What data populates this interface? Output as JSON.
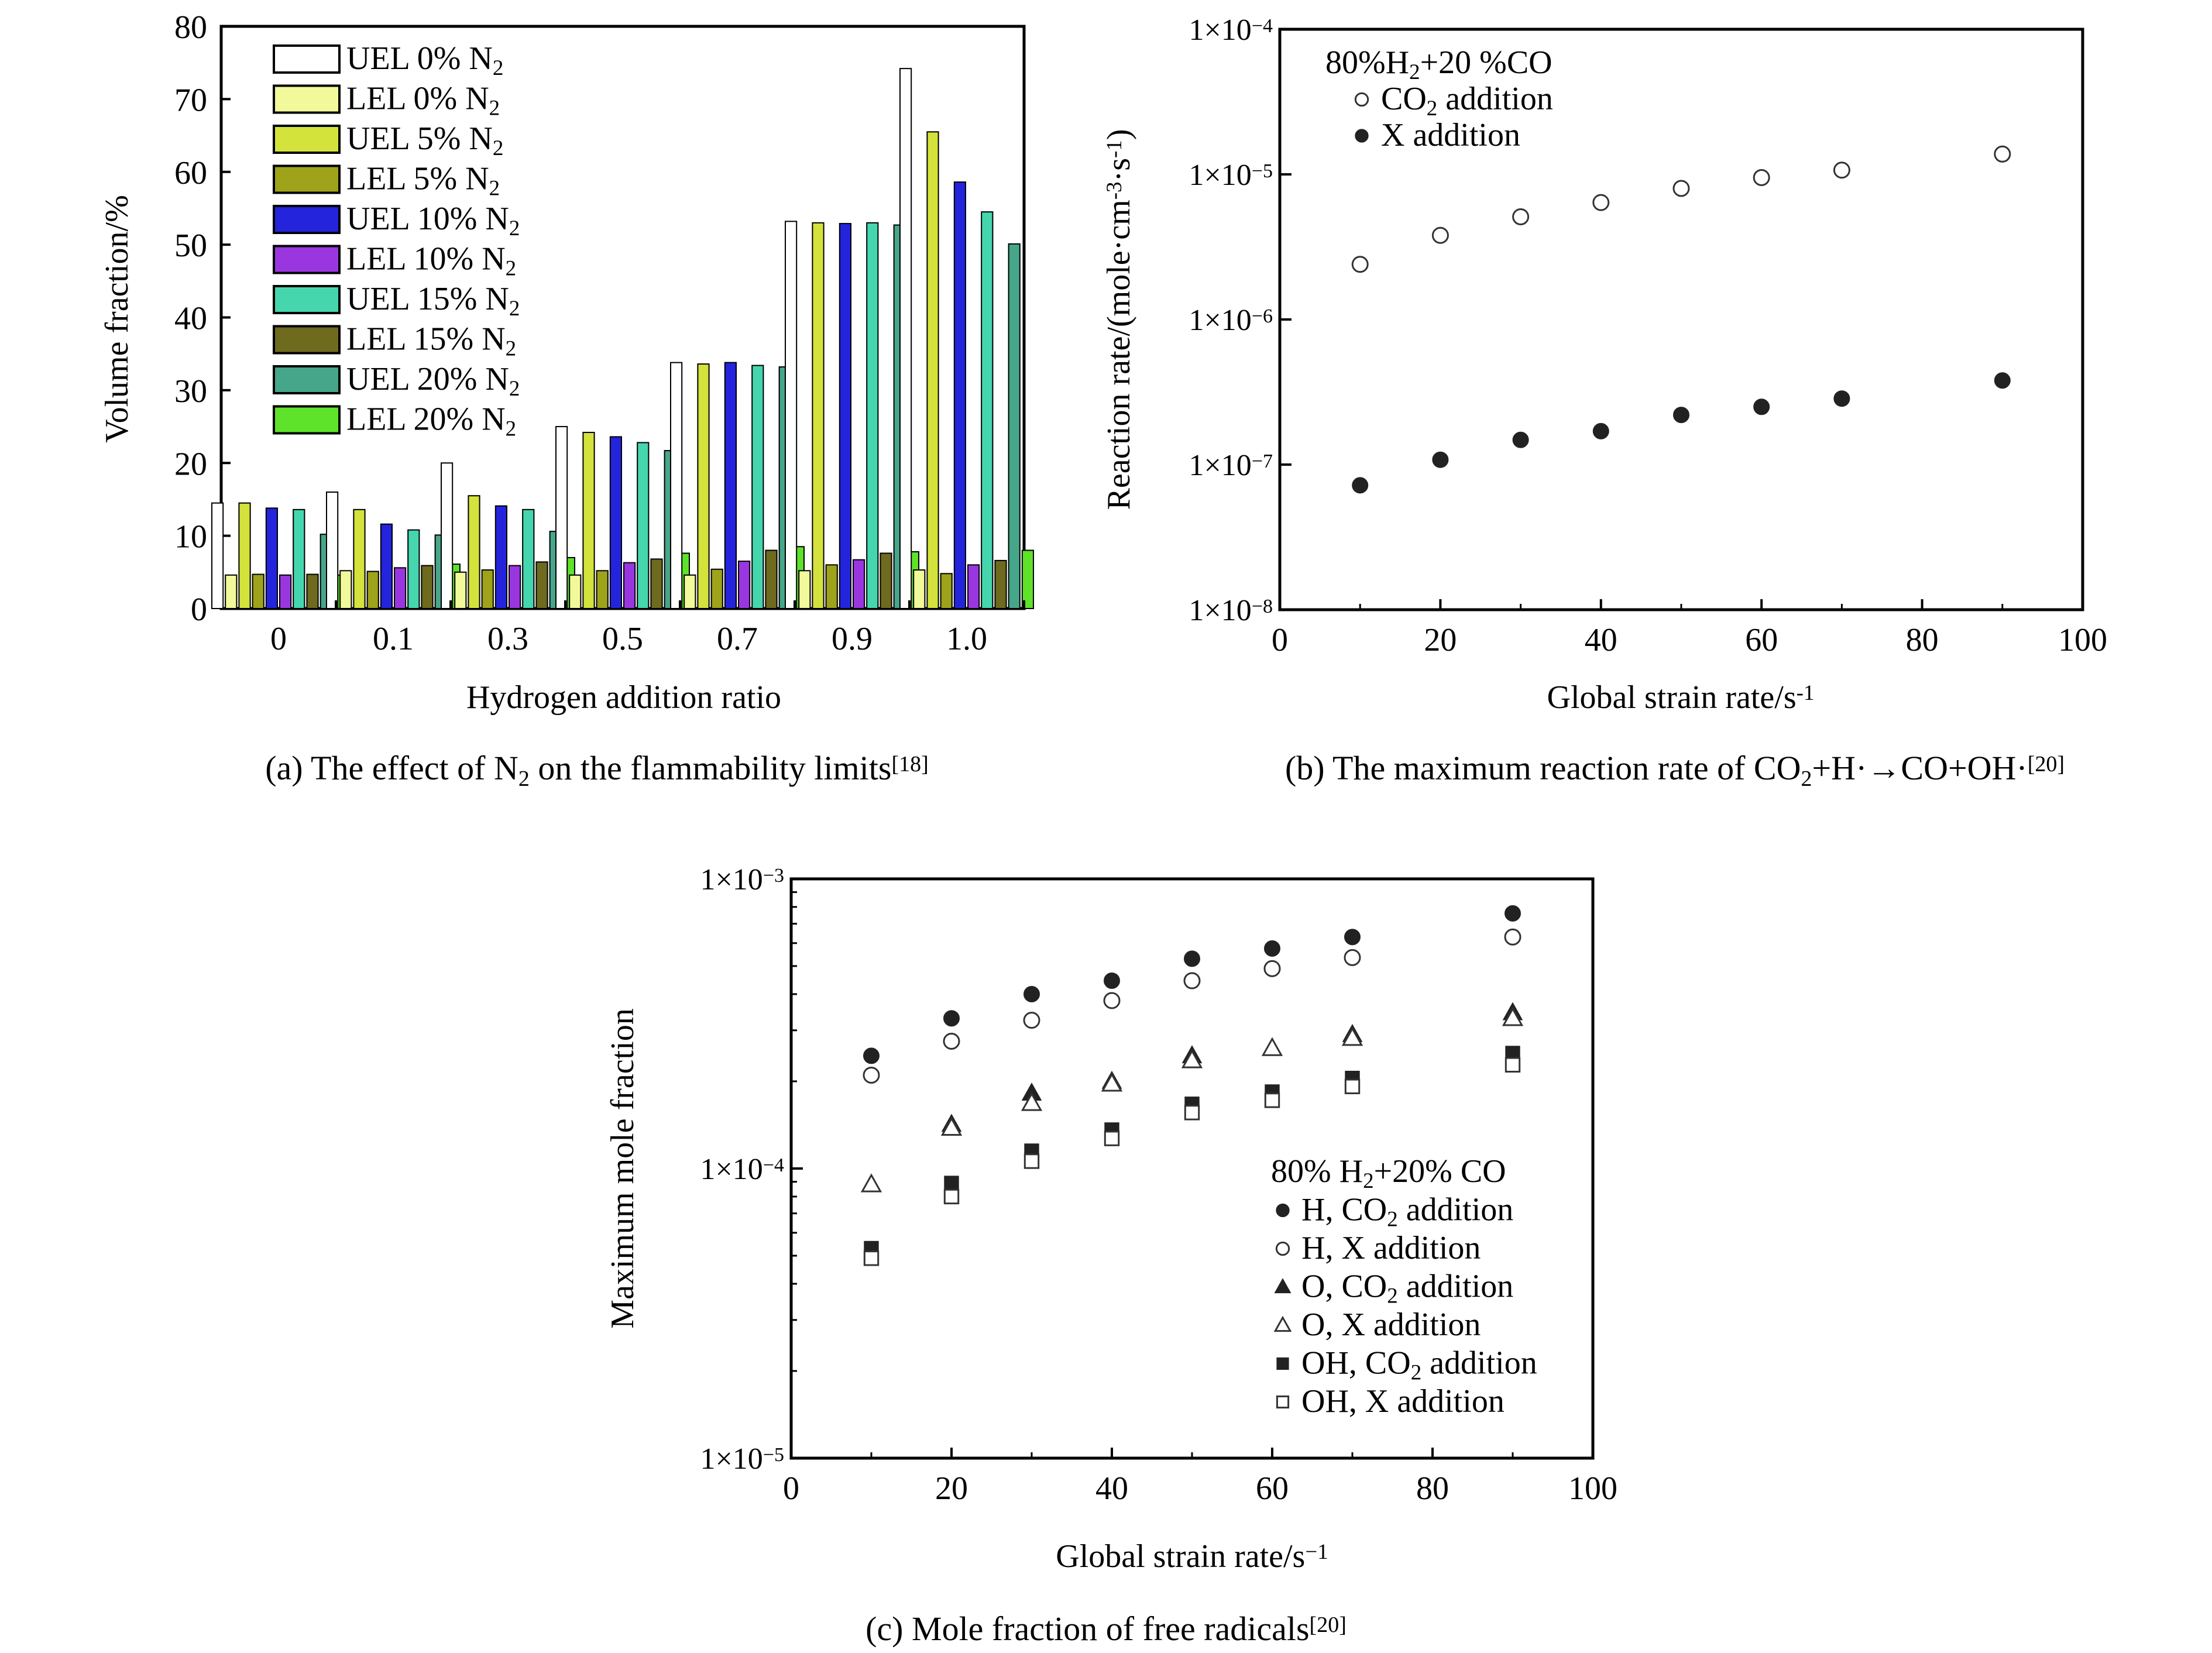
{
  "chart_data": [
    {
      "type": "bar",
      "caption": {
        "main": "(a) The effect of N",
        "sub": "2",
        "tail": " on the flammability limits",
        "ref": "[18]"
      },
      "xlabel": "Hydrogen addition ratio",
      "ylabel": "Volume fraction/%",
      "ylim": [
        0,
        80
      ],
      "yticks": [
        "0",
        "10",
        "20",
        "30",
        "40",
        "50",
        "60",
        "70",
        "80"
      ],
      "categories": [
        "0",
        "0.1",
        "0.3",
        "0.5",
        "0.7",
        "0.9",
        "1.0"
      ],
      "legend_position": "top-left",
      "series": [
        {
          "name": "UEL 0% N",
          "sub": "2",
          "color": "#ffffff",
          "values": [
            14.5,
            16,
            20,
            25,
            33.8,
            53.2,
            74.2
          ]
        },
        {
          "name": "LEL 0% N",
          "sub": "2",
          "color": "#f2f99a",
          "values": [
            4.6,
            5.2,
            5.0,
            4.6,
            4.6,
            5.2,
            5.3
          ]
        },
        {
          "name": "UEL 5% N",
          "sub": "2",
          "color": "#d4e23c",
          "values": [
            14.5,
            13.6,
            15.5,
            24.2,
            33.6,
            53.0,
            65.5
          ]
        },
        {
          "name": "LEL 5% N",
          "sub": "2",
          "color": "#9ea31a",
          "values": [
            4.7,
            5.1,
            5.3,
            5.2,
            5.4,
            6.0,
            4.8
          ]
        },
        {
          "name": "UEL 10% N",
          "sub": "2",
          "color": "#2424dc",
          "values": [
            13.8,
            11.6,
            14.1,
            23.6,
            33.8,
            52.9,
            58.6
          ]
        },
        {
          "name": "LEL 10% N",
          "sub": "2",
          "color": "#9a36e0",
          "values": [
            4.6,
            5.6,
            5.9,
            6.3,
            6.5,
            6.7,
            6.0
          ]
        },
        {
          "name": "UEL 15% N",
          "sub": "2",
          "color": "#46d6ae",
          "values": [
            13.6,
            10.8,
            13.6,
            22.8,
            33.4,
            53.0,
            54.5
          ]
        },
        {
          "name": "LEL 15% N",
          "sub": "2",
          "color": "#6e6a1e",
          "values": [
            4.7,
            5.9,
            6.4,
            6.8,
            8.0,
            7.6,
            6.6
          ]
        },
        {
          "name": "UEL 20% N",
          "sub": "2",
          "color": "#46a68a",
          "values": [
            10.2,
            10.1,
            10.6,
            21.7,
            33.2,
            52.7,
            50.1
          ]
        },
        {
          "name": "LEL 20% N",
          "sub": "2",
          "color": "#5ee22a",
          "values": [
            4.6,
            6.1,
            7.0,
            7.6,
            8.5,
            7.8,
            8.0
          ]
        }
      ]
    },
    {
      "type": "scatter",
      "caption": {
        "main": "(b) The maximum reaction rate of CO",
        "sub": "2",
        "tail": "+H·→CO+OH·",
        "ref": "[20]"
      },
      "xlabel": "Global strain rate/s",
      "xlabel_sup": "-1",
      "ylabel": "Reaction rate/(mole·cm",
      "ylabel_sup1": "-3",
      "ylabel_mid": "·s",
      "ylabel_sup2": "-1",
      "ylabel_end": ")",
      "xlim": [
        0,
        100
      ],
      "xticks": [
        "0",
        "20",
        "40",
        "60",
        "80",
        "100"
      ],
      "ylog": true,
      "ylim": [
        1e-08,
        0.0001
      ],
      "yticks": [
        {
          "base": "1×10",
          "exp": "−4"
        },
        {
          "base": "1×10",
          "exp": "−5"
        },
        {
          "base": "1×10",
          "exp": "−6"
        },
        {
          "base": "1×10",
          "exp": "−7"
        },
        {
          "base": "1×10",
          "exp": "−8"
        }
      ],
      "legend_title": {
        "a": "80%H",
        "sub": "2",
        "b": "+20 %CO"
      },
      "legend_position": "top-left",
      "series": [
        {
          "name": "CO",
          "sub": "2",
          "tail": " addition",
          "marker": "circle-open",
          "x": [
            10,
            20,
            30,
            40,
            50,
            60,
            70,
            90
          ],
          "y": [
            2.4e-06,
            3.8e-06,
            5.1e-06,
            6.4e-06,
            8e-06,
            9.5e-06,
            1.07e-05,
            1.38e-05
          ]
        },
        {
          "name": "X addition",
          "marker": "circle-filled",
          "x": [
            10,
            20,
            30,
            40,
            50,
            60,
            70,
            90
          ],
          "y": [
            7.2e-08,
            1.08e-07,
            1.48e-07,
            1.7e-07,
            2.2e-07,
            2.5e-07,
            2.85e-07,
            3.8e-07
          ]
        }
      ]
    },
    {
      "type": "scatter",
      "caption": {
        "main": "(c) Mole fraction of free radicals",
        "ref": "[20]"
      },
      "xlabel": "Global strain rate/s",
      "xlabel_sup": "−1",
      "ylabel": "Maximum mole fraction",
      "xlim": [
        0,
        100
      ],
      "xticks": [
        "0",
        "20",
        "40",
        "60",
        "80",
        "100"
      ],
      "ylog": true,
      "ylim": [
        1e-05,
        0.001
      ],
      "yticks": [
        {
          "base": "1×10",
          "exp": "−3"
        },
        {
          "base": "1×10",
          "exp": "−4"
        },
        {
          "base": "1×10",
          "exp": "−5"
        }
      ],
      "legend_title": {
        "a": "80% H",
        "sub": "2",
        "b": "+20% CO"
      },
      "legend_position": "bottom-right",
      "series": [
        {
          "name": "H, CO",
          "sub": "2",
          "tail": " addition",
          "marker": "circle-filled",
          "x": [
            10,
            20,
            30,
            40,
            50,
            60,
            70,
            90
          ],
          "y": [
            0.000245,
            0.00033,
            0.0004,
            0.000445,
            0.00053,
            0.000575,
            0.00063,
            0.00076
          ]
        },
        {
          "name": "H, X addition",
          "marker": "circle-open",
          "x": [
            10,
            20,
            30,
            40,
            50,
            60,
            70,
            90
          ],
          "y": [
            0.00021,
            0.000275,
            0.000325,
            0.00038,
            0.000445,
            0.00049,
            0.000535,
            0.00063
          ]
        },
        {
          "name": "O, CO",
          "sub": "2",
          "tail": " addition",
          "marker": "triangle-filled",
          "x": [
            20,
            30,
            40,
            50,
            60,
            70,
            90
          ],
          "y": [
            0.000142,
            0.000182,
            0.0002,
            0.000245,
            0.00026,
            0.00029,
            0.000345
          ]
        },
        {
          "name": "O, X addition",
          "marker": "triangle-open",
          "x": [
            10,
            20,
            30,
            40,
            50,
            60,
            70,
            90
          ],
          "y": [
            8.8e-05,
            0.000138,
            0.000168,
            0.000196,
            0.000236,
            0.00026,
            0.000282,
            0.00033
          ]
        },
        {
          "name": "OH, CO",
          "sub": "2",
          "tail": " addition",
          "marker": "square-filled",
          "x": [
            10,
            20,
            30,
            40,
            50,
            60,
            70,
            90
          ],
          "y": [
            5.3e-05,
            8.9e-05,
            0.000115,
            0.000136,
            0.000167,
            0.000184,
            0.000205,
            0.00025
          ]
        },
        {
          "name": "OH, X addition",
          "marker": "square-open",
          "x": [
            10,
            20,
            30,
            40,
            50,
            60,
            70,
            90
          ],
          "y": [
            4.9e-05,
            8e-05,
            0.000106,
            0.000127,
            0.000156,
            0.000172,
            0.000192,
            0.000228
          ]
        }
      ]
    }
  ]
}
